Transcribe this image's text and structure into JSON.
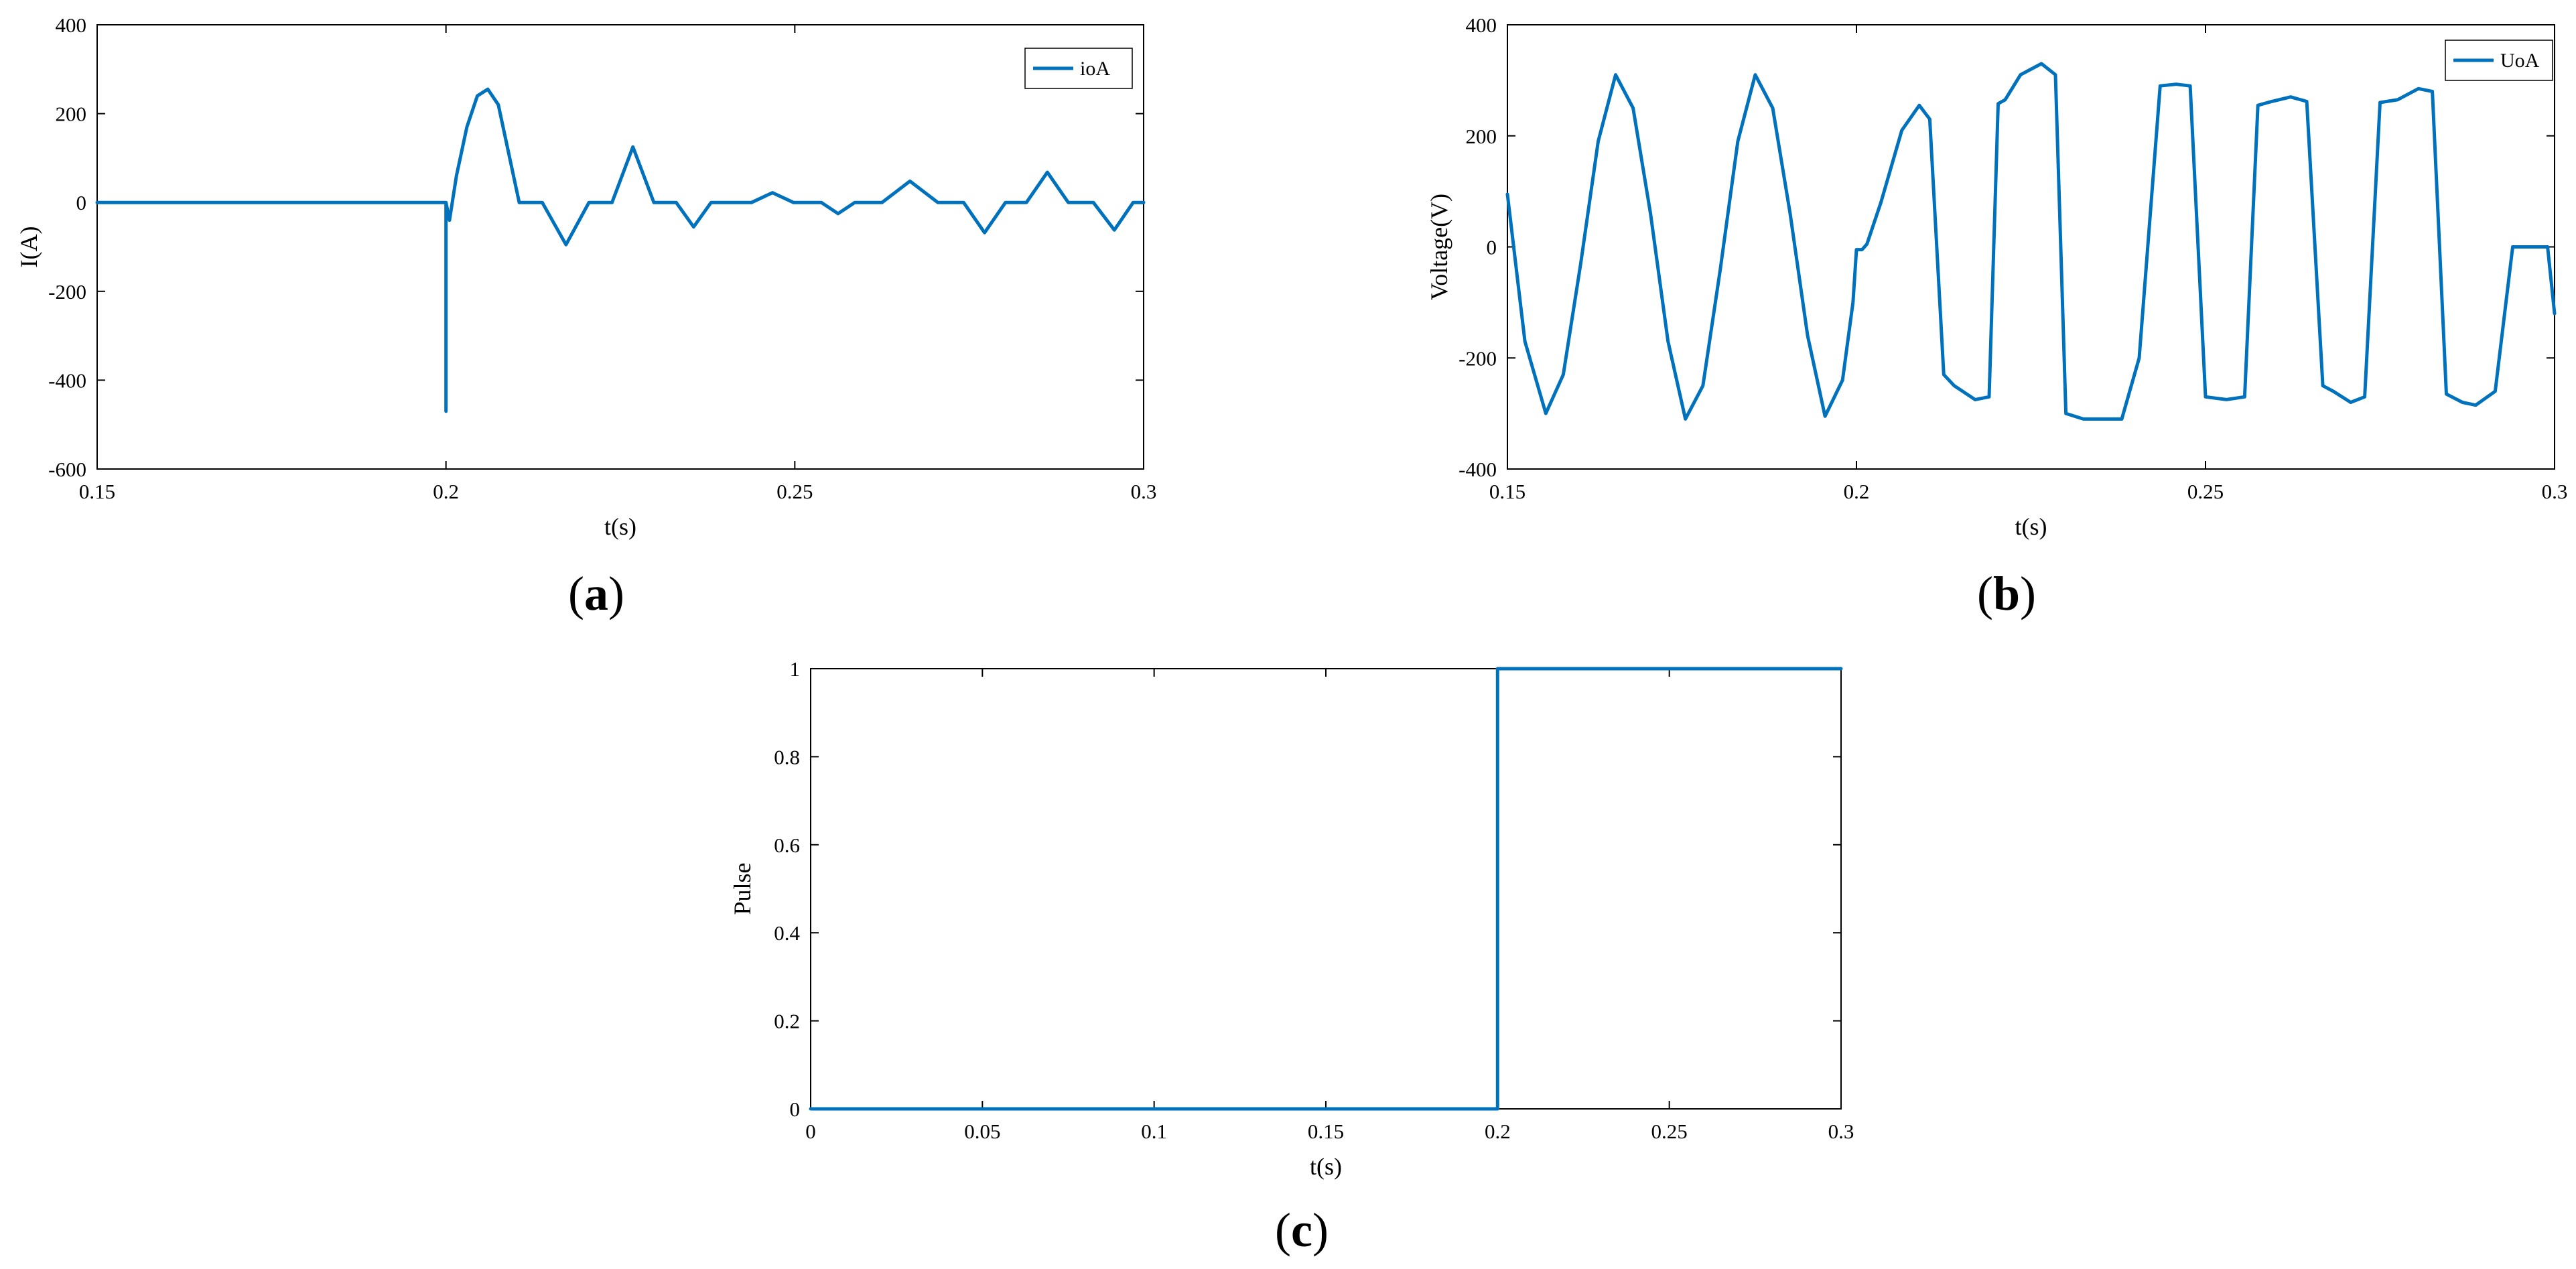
{
  "colors": {
    "series": "#0072BD",
    "axis": "#000000",
    "background": "#ffffff"
  },
  "chart_data": [
    {
      "id": "a",
      "caption_letter": "a",
      "type": "line",
      "xlabel": "t(s)",
      "ylabel": "I(A)",
      "xlim": [
        0.15,
        0.3
      ],
      "ylim": [
        -600,
        400
      ],
      "xticks": [
        0.15,
        0.2,
        0.25,
        0.3
      ],
      "xtick_labels": [
        "0.15",
        "0.2",
        "0.25",
        "0.3"
      ],
      "yticks": [
        -600,
        -400,
        -200,
        0,
        200,
        400
      ],
      "ytick_labels": [
        "-600",
        "-400",
        "-200",
        "0",
        "200",
        "400"
      ],
      "grid": false,
      "legend_position": "top-right",
      "series": [
        {
          "name": "ioA",
          "x": [
            0.15,
            0.2,
            0.2,
            0.2,
            0.2005,
            0.2005,
            0.2015,
            0.203,
            0.2045,
            0.206,
            0.2075,
            0.209,
            0.2105,
            0.2138,
            0.2172,
            0.2205,
            0.2238,
            0.2268,
            0.2298,
            0.233,
            0.2355,
            0.238,
            0.2405,
            0.2438,
            0.2468,
            0.2498,
            0.2538,
            0.2562,
            0.2586,
            0.2625,
            0.2665,
            0.2705,
            0.2742,
            0.2772,
            0.2802,
            0.2832,
            0.2862,
            0.2892,
            0.2928,
            0.2958,
            0.2985,
            0.3
          ],
          "y": [
            0,
            0,
            -470,
            0,
            -40,
            -40,
            60,
            170,
            240,
            255,
            220,
            110,
            0,
            0,
            -95,
            0,
            0,
            125,
            0,
            0,
            -55,
            0,
            0,
            0,
            22,
            0,
            0,
            -25,
            0,
            0,
            48,
            0,
            0,
            -68,
            0,
            0,
            68,
            0,
            0,
            -62,
            0,
            0
          ]
        }
      ]
    },
    {
      "id": "b",
      "caption_letter": "b",
      "type": "line",
      "xlabel": "t(s)",
      "ylabel": "Voltage(V)",
      "xlim": [
        0.15,
        0.3
      ],
      "ylim": [
        -400,
        400
      ],
      "xticks": [
        0.15,
        0.2,
        0.25,
        0.3
      ],
      "xtick_labels": [
        "0.15",
        "0.2",
        "0.25",
        "0.3"
      ],
      "yticks": [
        -400,
        -200,
        0,
        200,
        400
      ],
      "ytick_labels": [
        "-400",
        "-200",
        "0",
        "200",
        "400"
      ],
      "grid": false,
      "legend_position": "top-right",
      "series": [
        {
          "name": "UoA",
          "x": [
            0.15,
            0.1525,
            0.1555,
            0.158,
            0.1605,
            0.163,
            0.1655,
            0.168,
            0.1705,
            0.173,
            0.1755,
            0.178,
            0.1805,
            0.183,
            0.1855,
            0.188,
            0.1905,
            0.193,
            0.1955,
            0.198,
            0.1995,
            0.2,
            0.2002,
            0.2008,
            0.2015,
            0.2035,
            0.2065,
            0.209,
            0.2105,
            0.2125,
            0.214,
            0.217,
            0.219,
            0.2203,
            0.2213,
            0.2235,
            0.2265,
            0.2285,
            0.23,
            0.2325,
            0.2355,
            0.238,
            0.2405,
            0.2435,
            0.2458,
            0.2478,
            0.25,
            0.253,
            0.2556,
            0.2575,
            0.2595,
            0.2622,
            0.2645,
            0.2668,
            0.2683,
            0.2708,
            0.2728,
            0.275,
            0.2775,
            0.2805,
            0.2825,
            0.2845,
            0.2868,
            0.2887,
            0.2915,
            0.294,
            0.2965,
            0.299,
            0.3
          ],
          "y": [
            95,
            -170,
            -300,
            -230,
            -30,
            190,
            310,
            250,
            60,
            -170,
            -310,
            -250,
            -40,
            190,
            310,
            250,
            60,
            -160,
            -305,
            -240,
            -100,
            -5,
            -5,
            -5,
            5,
            80,
            210,
            255,
            230,
            -230,
            -250,
            -275,
            -270,
            258,
            265,
            310,
            330,
            310,
            -300,
            -310,
            -310,
            -310,
            -200,
            290,
            293,
            290,
            -270,
            -275,
            -270,
            255,
            262,
            270,
            262,
            -250,
            -260,
            -280,
            -270,
            260,
            265,
            285,
            280,
            -265,
            -280,
            -285,
            -260,
            0,
            0,
            0,
            -120
          ]
        }
      ]
    },
    {
      "id": "c",
      "caption_letter": "c",
      "type": "line",
      "xlabel": "t(s)",
      "ylabel": "Pulse",
      "xlim": [
        0,
        0.3
      ],
      "ylim": [
        0,
        1
      ],
      "xticks": [
        0,
        0.05,
        0.1,
        0.15,
        0.2,
        0.25,
        0.3
      ],
      "xtick_labels": [
        "0",
        "0.05",
        "0.1",
        "0.15",
        "0.2",
        "0.25",
        "0.3"
      ],
      "yticks": [
        0,
        0.2,
        0.4,
        0.6,
        0.8,
        1
      ],
      "ytick_labels": [
        "0",
        "0.2",
        "0.4",
        "0.6",
        "0.8",
        "1"
      ],
      "grid": false,
      "legend_position": "none",
      "series": [
        {
          "name": "",
          "x": [
            0,
            0.2,
            0.2,
            0.3
          ],
          "y": [
            0,
            0,
            1,
            1
          ]
        }
      ]
    }
  ]
}
